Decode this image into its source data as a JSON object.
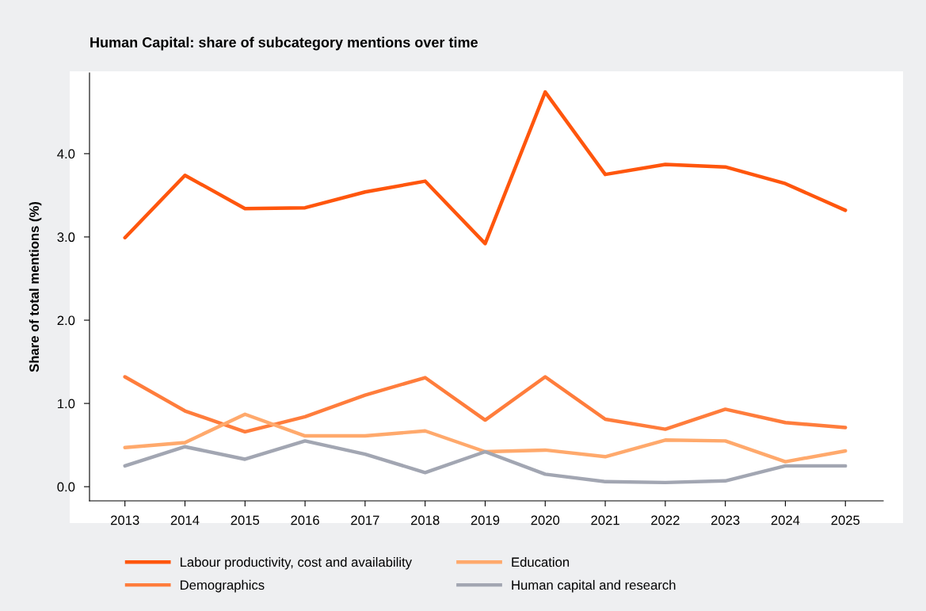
{
  "chart_data": {
    "type": "line",
    "title": "Human Capital: share of subcategory mentions over time",
    "ylabel": "Share of total mentions (%)",
    "categories": [
      "2013",
      "2014",
      "2015",
      "2016",
      "2017",
      "2018",
      "2019",
      "2020",
      "2021",
      "2022",
      "2023",
      "2024",
      "2025"
    ],
    "series": [
      {
        "name": "Labour productivity, cost and availability",
        "color": "#ff560d",
        "values": [
          2.99,
          3.74,
          3.34,
          3.35,
          3.54,
          3.67,
          2.92,
          4.74,
          3.75,
          3.87,
          3.84,
          3.64,
          3.32
        ]
      },
      {
        "name": "Demographics",
        "color": "#ff7d3c",
        "values": [
          1.32,
          0.91,
          0.66,
          0.84,
          1.1,
          1.31,
          0.8,
          1.32,
          0.81,
          0.69,
          0.93,
          0.77,
          0.71
        ]
      },
      {
        "name": "Education",
        "color": "#ffa96c",
        "values": [
          0.47,
          0.53,
          0.87,
          0.61,
          0.61,
          0.67,
          0.42,
          0.44,
          0.36,
          0.56,
          0.55,
          0.3,
          0.43
        ]
      },
      {
        "name": "Human capital and research",
        "color": "#a2a6b2",
        "values": [
          0.25,
          0.48,
          0.33,
          0.55,
          0.39,
          0.17,
          0.42,
          0.15,
          0.06,
          0.05,
          0.07,
          0.25,
          0.25
        ]
      }
    ],
    "ylim": [
      -0.17,
      4.97
    ],
    "yticks": [
      {
        "value": 0,
        "label": "0.0"
      },
      {
        "value": 1,
        "label": "1.0"
      },
      {
        "value": 2,
        "label": "2.0"
      },
      {
        "value": 3,
        "label": "3.0"
      },
      {
        "value": 4,
        "label": "4.0"
      }
    ],
    "grid": false,
    "legend": "bottom",
    "marker": "none",
    "line_style": "solid"
  }
}
